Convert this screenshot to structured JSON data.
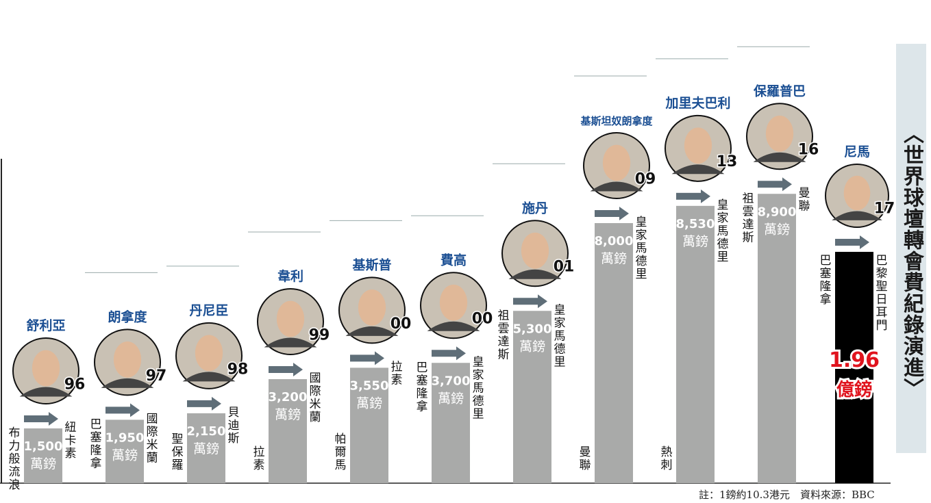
{
  "title": "〈世界球壇轉會費紀錄演進〉",
  "note": "註：1鎊約10.3港元　資料來源：BBC",
  "chart_data": {
    "type": "bar",
    "unit": "萬鎊",
    "colors": {
      "bar": "#a9aaa9",
      "highlight": "#000000",
      "arrow": "#5f6e78",
      "name": "#1b4f93",
      "value_text": "#ffffff",
      "highlight_text": "#e0141e"
    },
    "records": [
      {
        "name": "舒利亞",
        "year": "96",
        "from": "布力般流浪",
        "to": "紐卡素",
        "value": 1500,
        "label": "1,500",
        "unit": "萬鎊"
      },
      {
        "name": "朗拿度",
        "year": "97",
        "from": "巴塞隆拿",
        "to": "國際米蘭",
        "value": 1950,
        "label": "1,950",
        "unit": "萬鎊"
      },
      {
        "name": "丹尼臣",
        "year": "98",
        "from": "聖保羅",
        "to": "貝迪斯",
        "value": 2150,
        "label": "2,150",
        "unit": "萬鎊"
      },
      {
        "name": "韋利",
        "year": "99",
        "from": "拉素",
        "to": "國際米蘭",
        "value": 3200,
        "label": "3,200",
        "unit": "萬鎊"
      },
      {
        "name": "基斯普",
        "year": "00",
        "from": "帕爾馬",
        "to": "拉素",
        "value": 3550,
        "label": "3,550",
        "unit": "萬鎊"
      },
      {
        "name": "費高",
        "year": "00",
        "from": "巴塞隆拿",
        "to": "皇家馬德里",
        "value": 3700,
        "label": "3,700",
        "unit": "萬鎊"
      },
      {
        "name": "施丹",
        "year": "01",
        "from": "祖雲達斯",
        "to": "皇家馬德里",
        "value": 5300,
        "label": "5,300",
        "unit": "萬鎊"
      },
      {
        "name": "基斯坦奴朗拿度",
        "year": "09",
        "from": "曼聯",
        "to": "皇家馬德里",
        "value": 8000,
        "label": "8,000",
        "unit": "萬鎊"
      },
      {
        "name": "加里夫巴利",
        "year": "13",
        "from": "熱刺",
        "to": "皇家馬德里",
        "value": 8530,
        "label": "8,530",
        "unit": "萬鎊"
      },
      {
        "name": "保羅普巴",
        "year": "16",
        "from": "祖雲達斯",
        "to": "曼聯",
        "value": 8900,
        "label": "8,900",
        "unit": "萬鎊"
      },
      {
        "name": "尼馬",
        "year": "17",
        "from": "巴塞隆拿",
        "to": "巴黎聖日耳門",
        "value": 19600,
        "label": "1.96",
        "unit": "億鎊"
      }
    ]
  }
}
